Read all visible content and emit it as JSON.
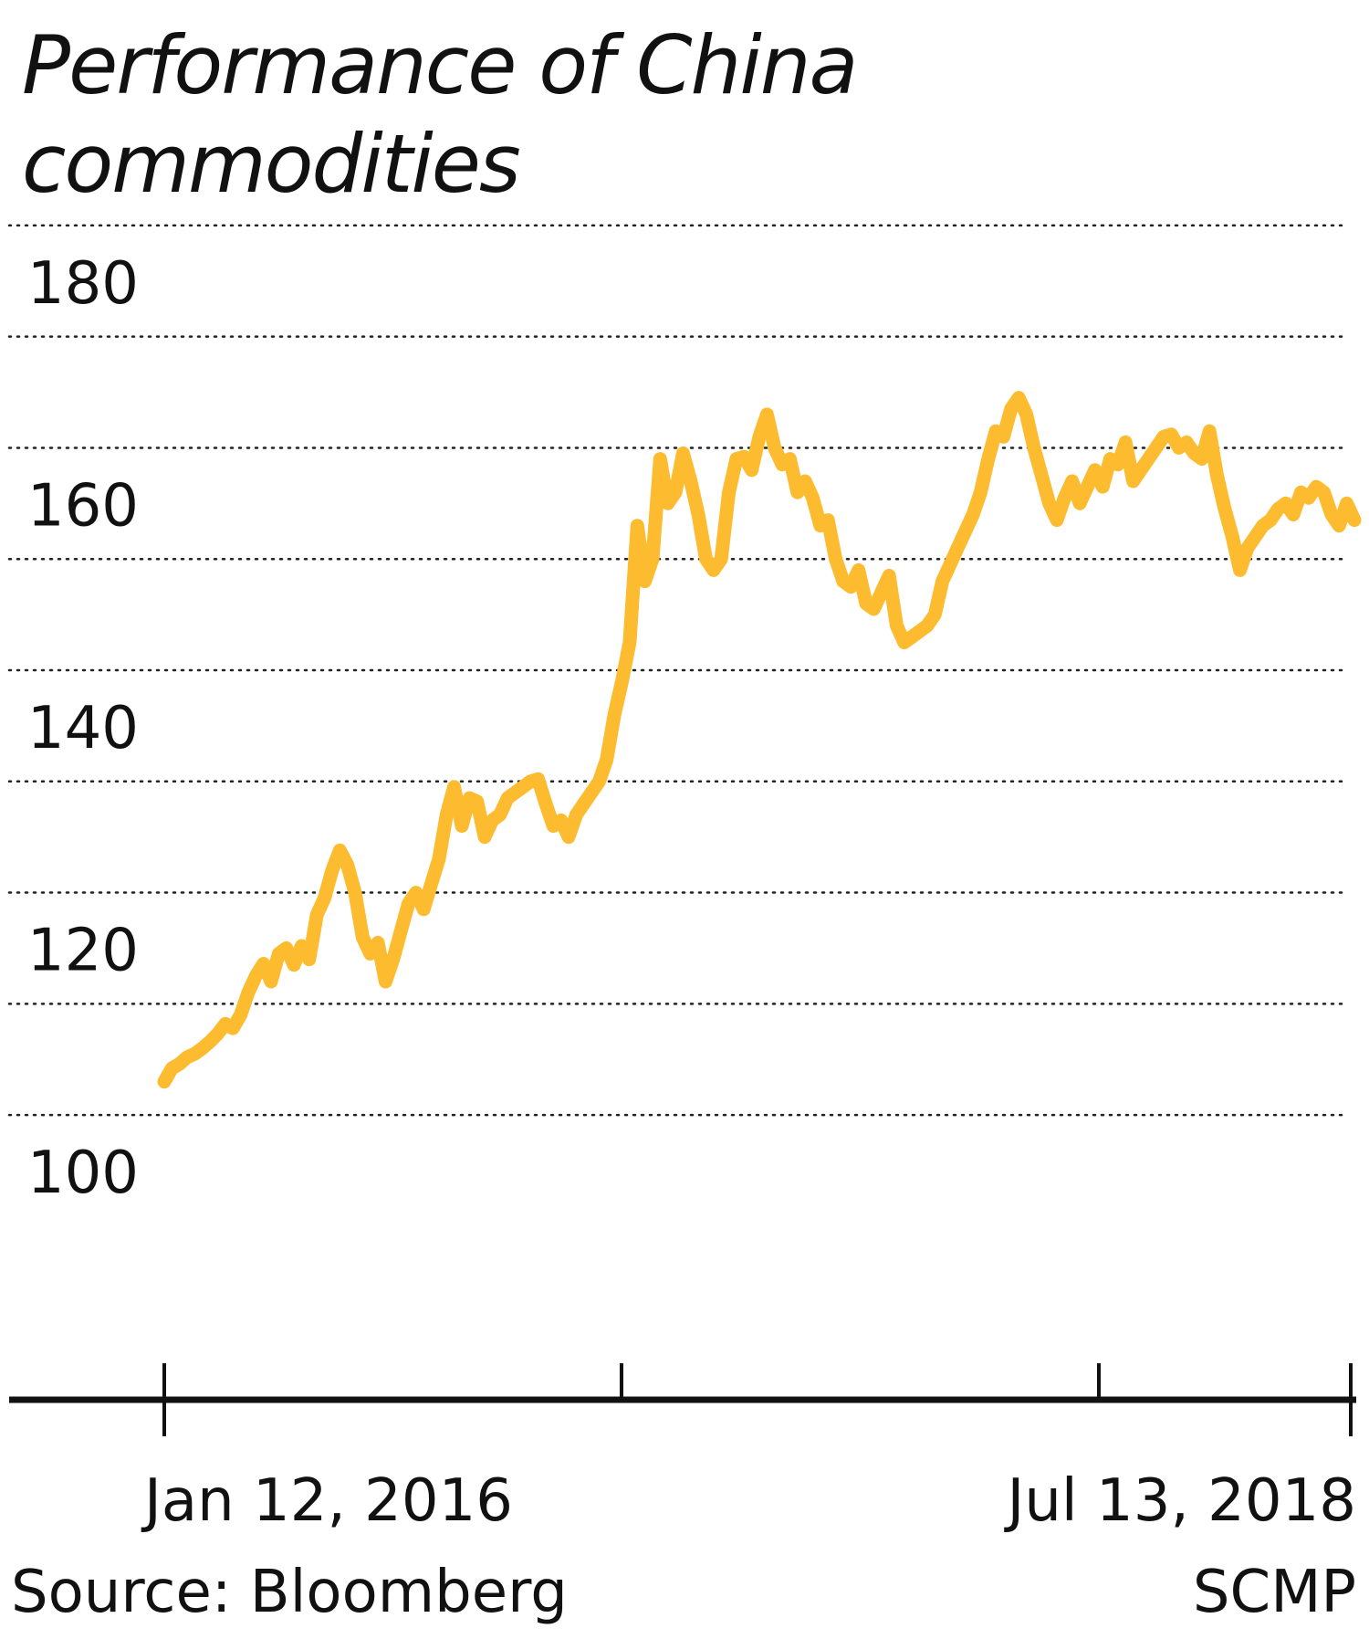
{
  "colors": {
    "line": "#FDBB30",
    "grid": "#222222",
    "axis": "#111111",
    "text": "#111111"
  },
  "chart_data": {
    "type": "line",
    "title": "Performance of China commodities",
    "ylim": [
      100,
      190
    ],
    "yticks": [
      180,
      160,
      140,
      120,
      100
    ],
    "grid": true,
    "x_tick_labels": [
      "Jan 12, 2016",
      "Jul 13, 2018"
    ],
    "source": "Source: Bloomberg",
    "credit": "SCMP",
    "series": [
      {
        "values": [
          108.0,
          109.2,
          109.6,
          110.2,
          110.5,
          111.0,
          111.6,
          112.3,
          113.2,
          112.8,
          114.0,
          116.0,
          117.5,
          118.6,
          117.0,
          119.5,
          120.0,
          118.5,
          120.2,
          119.0,
          123.0,
          124.5,
          127.0,
          128.8,
          127.5,
          125.0,
          121.0,
          119.5,
          120.5,
          117.0,
          119.0,
          121.5,
          124.0,
          125.0,
          123.5,
          125.8,
          128.0,
          132.0,
          134.5,
          131.0,
          133.5,
          133.2,
          130.0,
          131.5,
          132.0,
          133.5,
          134.0,
          134.5,
          135.0,
          135.2,
          133.0,
          131.0,
          131.5,
          130.0,
          132.0,
          133.0,
          134.0,
          135.0,
          137.0,
          141.0,
          144.0,
          147.5,
          158.0,
          153.0,
          155.0,
          164.0,
          160.0,
          161.0,
          164.5,
          162.0,
          159.0,
          155.0,
          154.0,
          155.0,
          161.0,
          164.0,
          164.2,
          163.0,
          166.0,
          168.0,
          165.0,
          163.5,
          164.0,
          161.0,
          162.0,
          160.5,
          158.0,
          158.5,
          155.0,
          153.0,
          152.5,
          154.0,
          151.0,
          150.5,
          152.0,
          153.5,
          149.0,
          147.5,
          148.0,
          148.5,
          149.0,
          150.0,
          153.0,
          154.5,
          156.0,
          157.5,
          159.0,
          161.0,
          164.0,
          166.5,
          166.0,
          168.5,
          169.5,
          168.0,
          165.0,
          162.5,
          160.0,
          158.5,
          160.5,
          162.0,
          160.0,
          161.5,
          163.0,
          161.5,
          164.0,
          163.5,
          165.5,
          162.0,
          163.0,
          164.0,
          165.0,
          166.0,
          166.2,
          165.0,
          165.5,
          164.5,
          164.0,
          166.5,
          162.5,
          159.5,
          157.0,
          154.0,
          156.0,
          157.0,
          158.0,
          158.5,
          159.5,
          160.0,
          159.0,
          161.0,
          160.5,
          161.5,
          161.0,
          159.0,
          158.0,
          160.0,
          158.5
        ]
      }
    ]
  }
}
